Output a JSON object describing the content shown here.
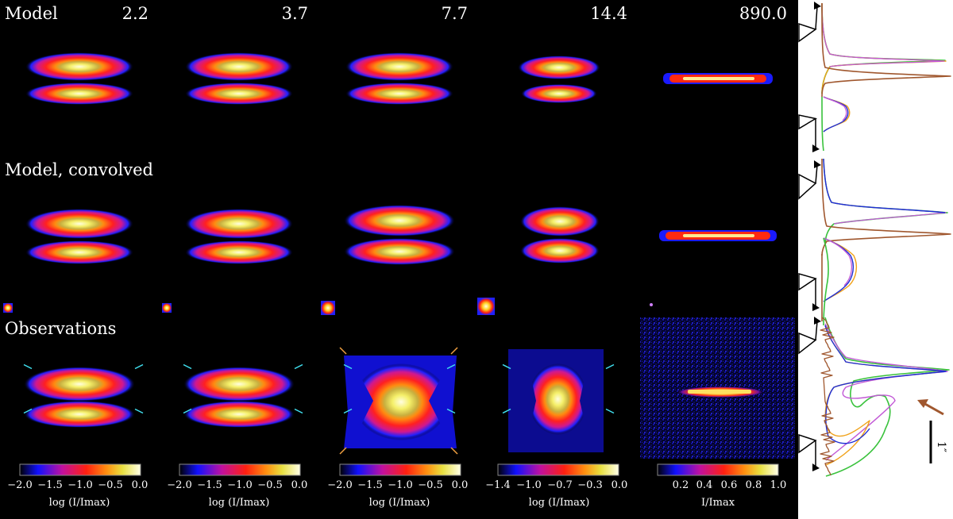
{
  "rows": {
    "model": "Model",
    "convolved": "Model, convolved",
    "observations": "Observations"
  },
  "wavelengths": [
    "2.2",
    "3.7",
    "7.7",
    "14.4",
    "890.0"
  ],
  "colorbars": [
    {
      "ticks": [
        "−2.0",
        "−1.5",
        "−1.0",
        "−0.5",
        "0.0"
      ],
      "label": "log (I/Imax)"
    },
    {
      "ticks": [
        "−2.0",
        "−1.5",
        "−1.0",
        "−0.5",
        "0.0"
      ],
      "label": "log (I/Imax)"
    },
    {
      "ticks": [
        "−2.0",
        "−1.5",
        "−1.0",
        "−0.5",
        "0.0"
      ],
      "label": "log (I/Imax)"
    },
    {
      "ticks": [
        "−1.4",
        "−1.0",
        "−0.7",
        "−0.3",
        "0.0"
      ],
      "label": "log (I/Imax)"
    },
    {
      "ticks": [
        "0.2",
        "0.4",
        "0.6",
        "0.8",
        "1.0"
      ],
      "label": "I/Imax"
    }
  ],
  "scale_bar_label": "1″",
  "profile_colors": {
    "blue": "#1f2fd6",
    "purple": "#c25ad6",
    "orange": "#f0a21a",
    "green": "#39c23c",
    "brown": "#a0572e"
  }
}
